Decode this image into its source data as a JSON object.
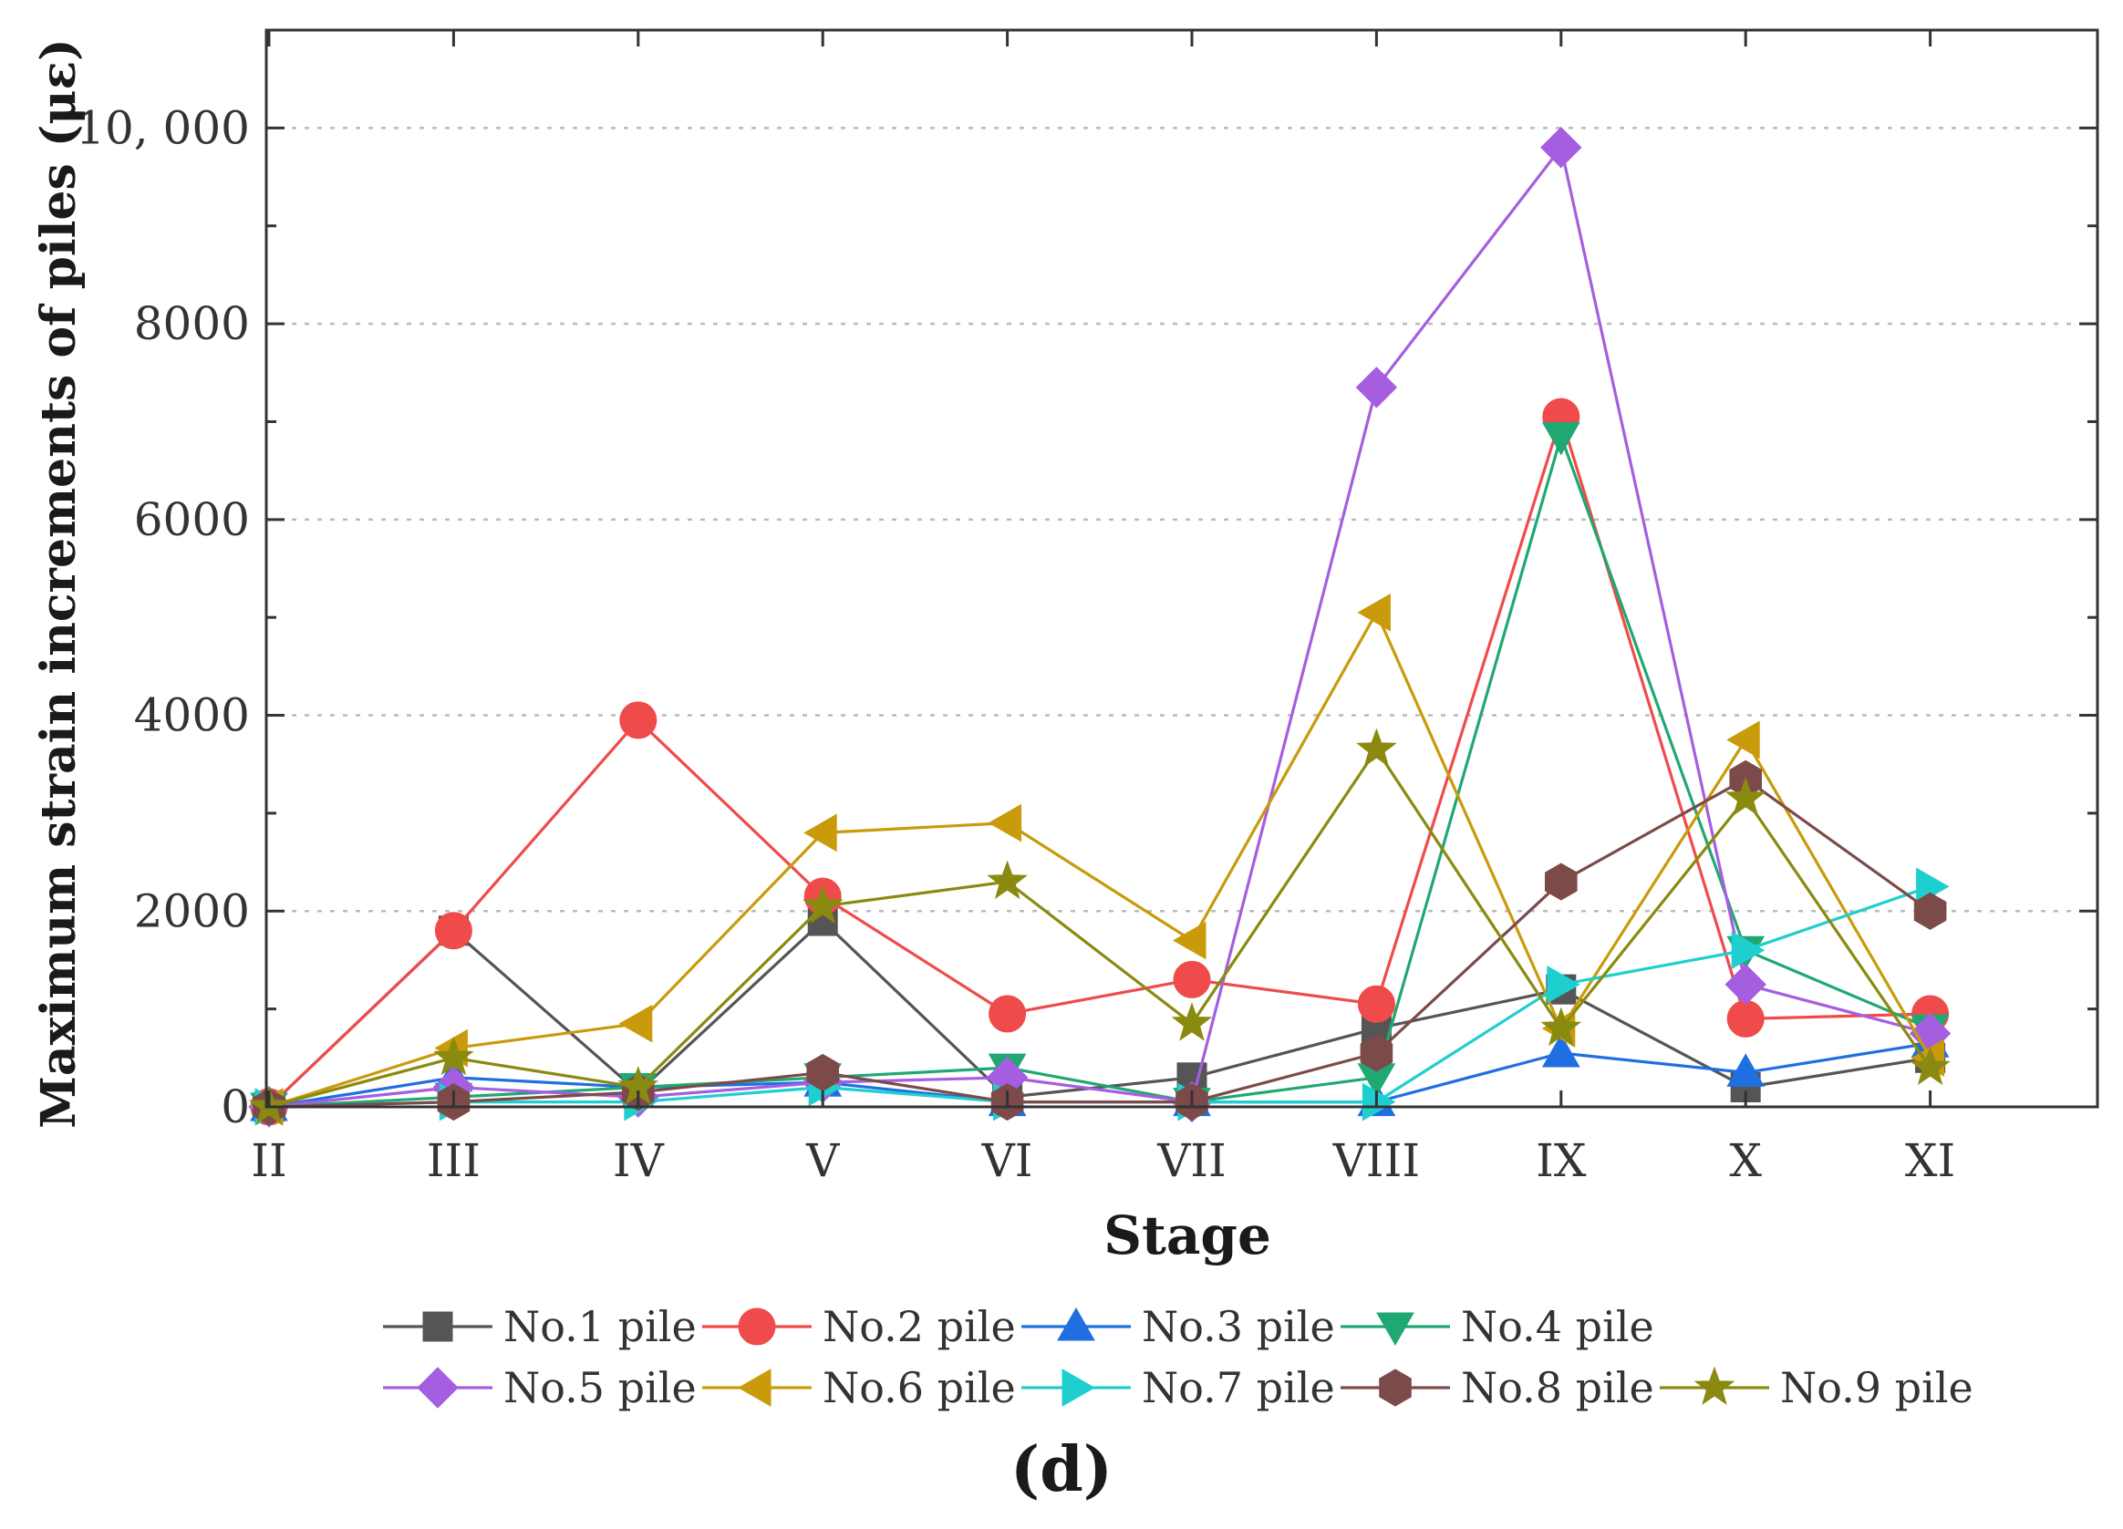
{
  "chart_data": {
    "type": "line",
    "title": "",
    "xlabel": "Stage",
    "ylabel": "Maximum strain increments of piles (με)",
    "categories": [
      "II",
      "III",
      "IV",
      "V",
      "VI",
      "VII",
      "VIII",
      "IX",
      "X",
      "XI"
    ],
    "ylim": [
      0,
      11000
    ],
    "yticks": [
      0,
      2000,
      4000,
      6000,
      8000,
      10000
    ],
    "ytick_labels": [
      "0",
      "2000",
      "4000",
      "6000",
      "8000",
      "10, 000"
    ],
    "grid": "horizontal dotted",
    "legend_position": "bottom",
    "caption": "(d)",
    "series": [
      {
        "name": "No.1 pile",
        "color": "#555555",
        "marker": "square",
        "values": [
          0,
          1800,
          150,
          1900,
          100,
          300,
          800,
          1200,
          200,
          500
        ]
      },
      {
        "name": "No.2 pile",
        "color": "#ef4b4b",
        "marker": "circle",
        "values": [
          0,
          1800,
          3950,
          2150,
          950,
          1300,
          1050,
          7050,
          900,
          950
        ]
      },
      {
        "name": "No.3 pile",
        "color": "#1f6fe0",
        "marker": "triangle-up",
        "values": [
          0,
          300,
          200,
          250,
          50,
          50,
          50,
          550,
          350,
          650
        ]
      },
      {
        "name": "No.4 pile",
        "color": "#20a872",
        "marker": "triangle-down",
        "values": [
          0,
          100,
          200,
          300,
          400,
          50,
          300,
          6850,
          1600,
          800
        ]
      },
      {
        "name": "No.5 pile",
        "color": "#a55ee0",
        "marker": "diamond",
        "values": [
          0,
          200,
          100,
          250,
          300,
          50,
          7350,
          9800,
          1250,
          750
        ]
      },
      {
        "name": "No.6 pile",
        "color": "#c99a0a",
        "marker": "triangle-left",
        "values": [
          0,
          600,
          850,
          2800,
          2900,
          1700,
          5050,
          800,
          3750,
          500
        ]
      },
      {
        "name": "No.7 pile",
        "color": "#1fcfcf",
        "marker": "triangle-right",
        "values": [
          0,
          50,
          50,
          200,
          50,
          50,
          50,
          1250,
          1600,
          2250
        ]
      },
      {
        "name": "No.8 pile",
        "color": "#7d4a4a",
        "marker": "hexagon",
        "values": [
          0,
          50,
          150,
          350,
          50,
          50,
          550,
          2300,
          3350,
          2000
        ]
      },
      {
        "name": "No.9 pile",
        "color": "#8a8a10",
        "marker": "star",
        "values": [
          0,
          500,
          200,
          2050,
          2300,
          850,
          3650,
          800,
          3150,
          400
        ]
      }
    ]
  }
}
